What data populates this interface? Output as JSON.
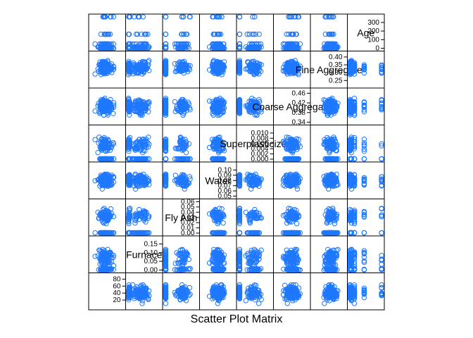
{
  "chart_data": {
    "type": "scatter",
    "title": "Scatter Plot Matrix",
    "variables": [
      {
        "name": "Furnace",
        "range": [
          0,
          0.18
        ],
        "ticks": [
          0.0,
          0.05,
          0.1,
          0.15
        ],
        "tick_labels": [
          "0.00",
          "0.05",
          "0.10",
          "0.15"
        ]
      },
      {
        "name": "Fly Ash",
        "range": [
          0,
          0.06
        ],
        "ticks": [
          0.0,
          0.01,
          0.02,
          0.03,
          0.04,
          0.05,
          0.06
        ],
        "tick_labels": [
          "0.00",
          "0.01",
          "0.02",
          "0.03",
          "0.04",
          "0.05",
          "0.06"
        ]
      },
      {
        "name": "Water",
        "range": [
          0.05,
          0.11
        ],
        "ticks": [
          0.05,
          0.06,
          0.07,
          0.08,
          0.09,
          0.1
        ],
        "tick_labels": [
          "0.05",
          "0.06",
          "0.07",
          "0.08",
          "0.09",
          "0.10"
        ]
      },
      {
        "name": "Superplasticizer",
        "range": [
          0,
          0.012
        ],
        "ticks": [
          0.0,
          0.002,
          0.004,
          0.006,
          0.008,
          0.01
        ],
        "tick_labels": [
          "0.000",
          "0.002",
          "0.004",
          "0.006",
          "0.008",
          "0.010"
        ]
      },
      {
        "name": "Coarse Aggregate",
        "range": [
          0.34,
          0.47
        ],
        "ticks": [
          0.34,
          0.38,
          0.42,
          0.46
        ],
        "tick_labels": [
          "0.34",
          "0.38",
          "0.42",
          "0.46"
        ]
      },
      {
        "name": "Fine Aggregate",
        "range": [
          0.22,
          0.42
        ],
        "ticks": [
          0.25,
          0.3,
          0.35,
          0.4
        ],
        "tick_labels": [
          "0.25",
          "0.30",
          "0.35",
          "0.40"
        ]
      },
      {
        "name": "Age",
        "range": [
          0,
          365
        ],
        "ticks": [
          0,
          100,
          200,
          300
        ],
        "tick_labels": [
          "0",
          "100",
          "200",
          "300"
        ]
      }
    ],
    "corner_panel": {
      "ticks": [
        20,
        40,
        60,
        80
      ],
      "tick_labels": [
        "20",
        "40",
        "60",
        "80"
      ]
    },
    "grid": false,
    "legend": "none",
    "marker": "open circle",
    "point_color": "#1F78FF"
  }
}
